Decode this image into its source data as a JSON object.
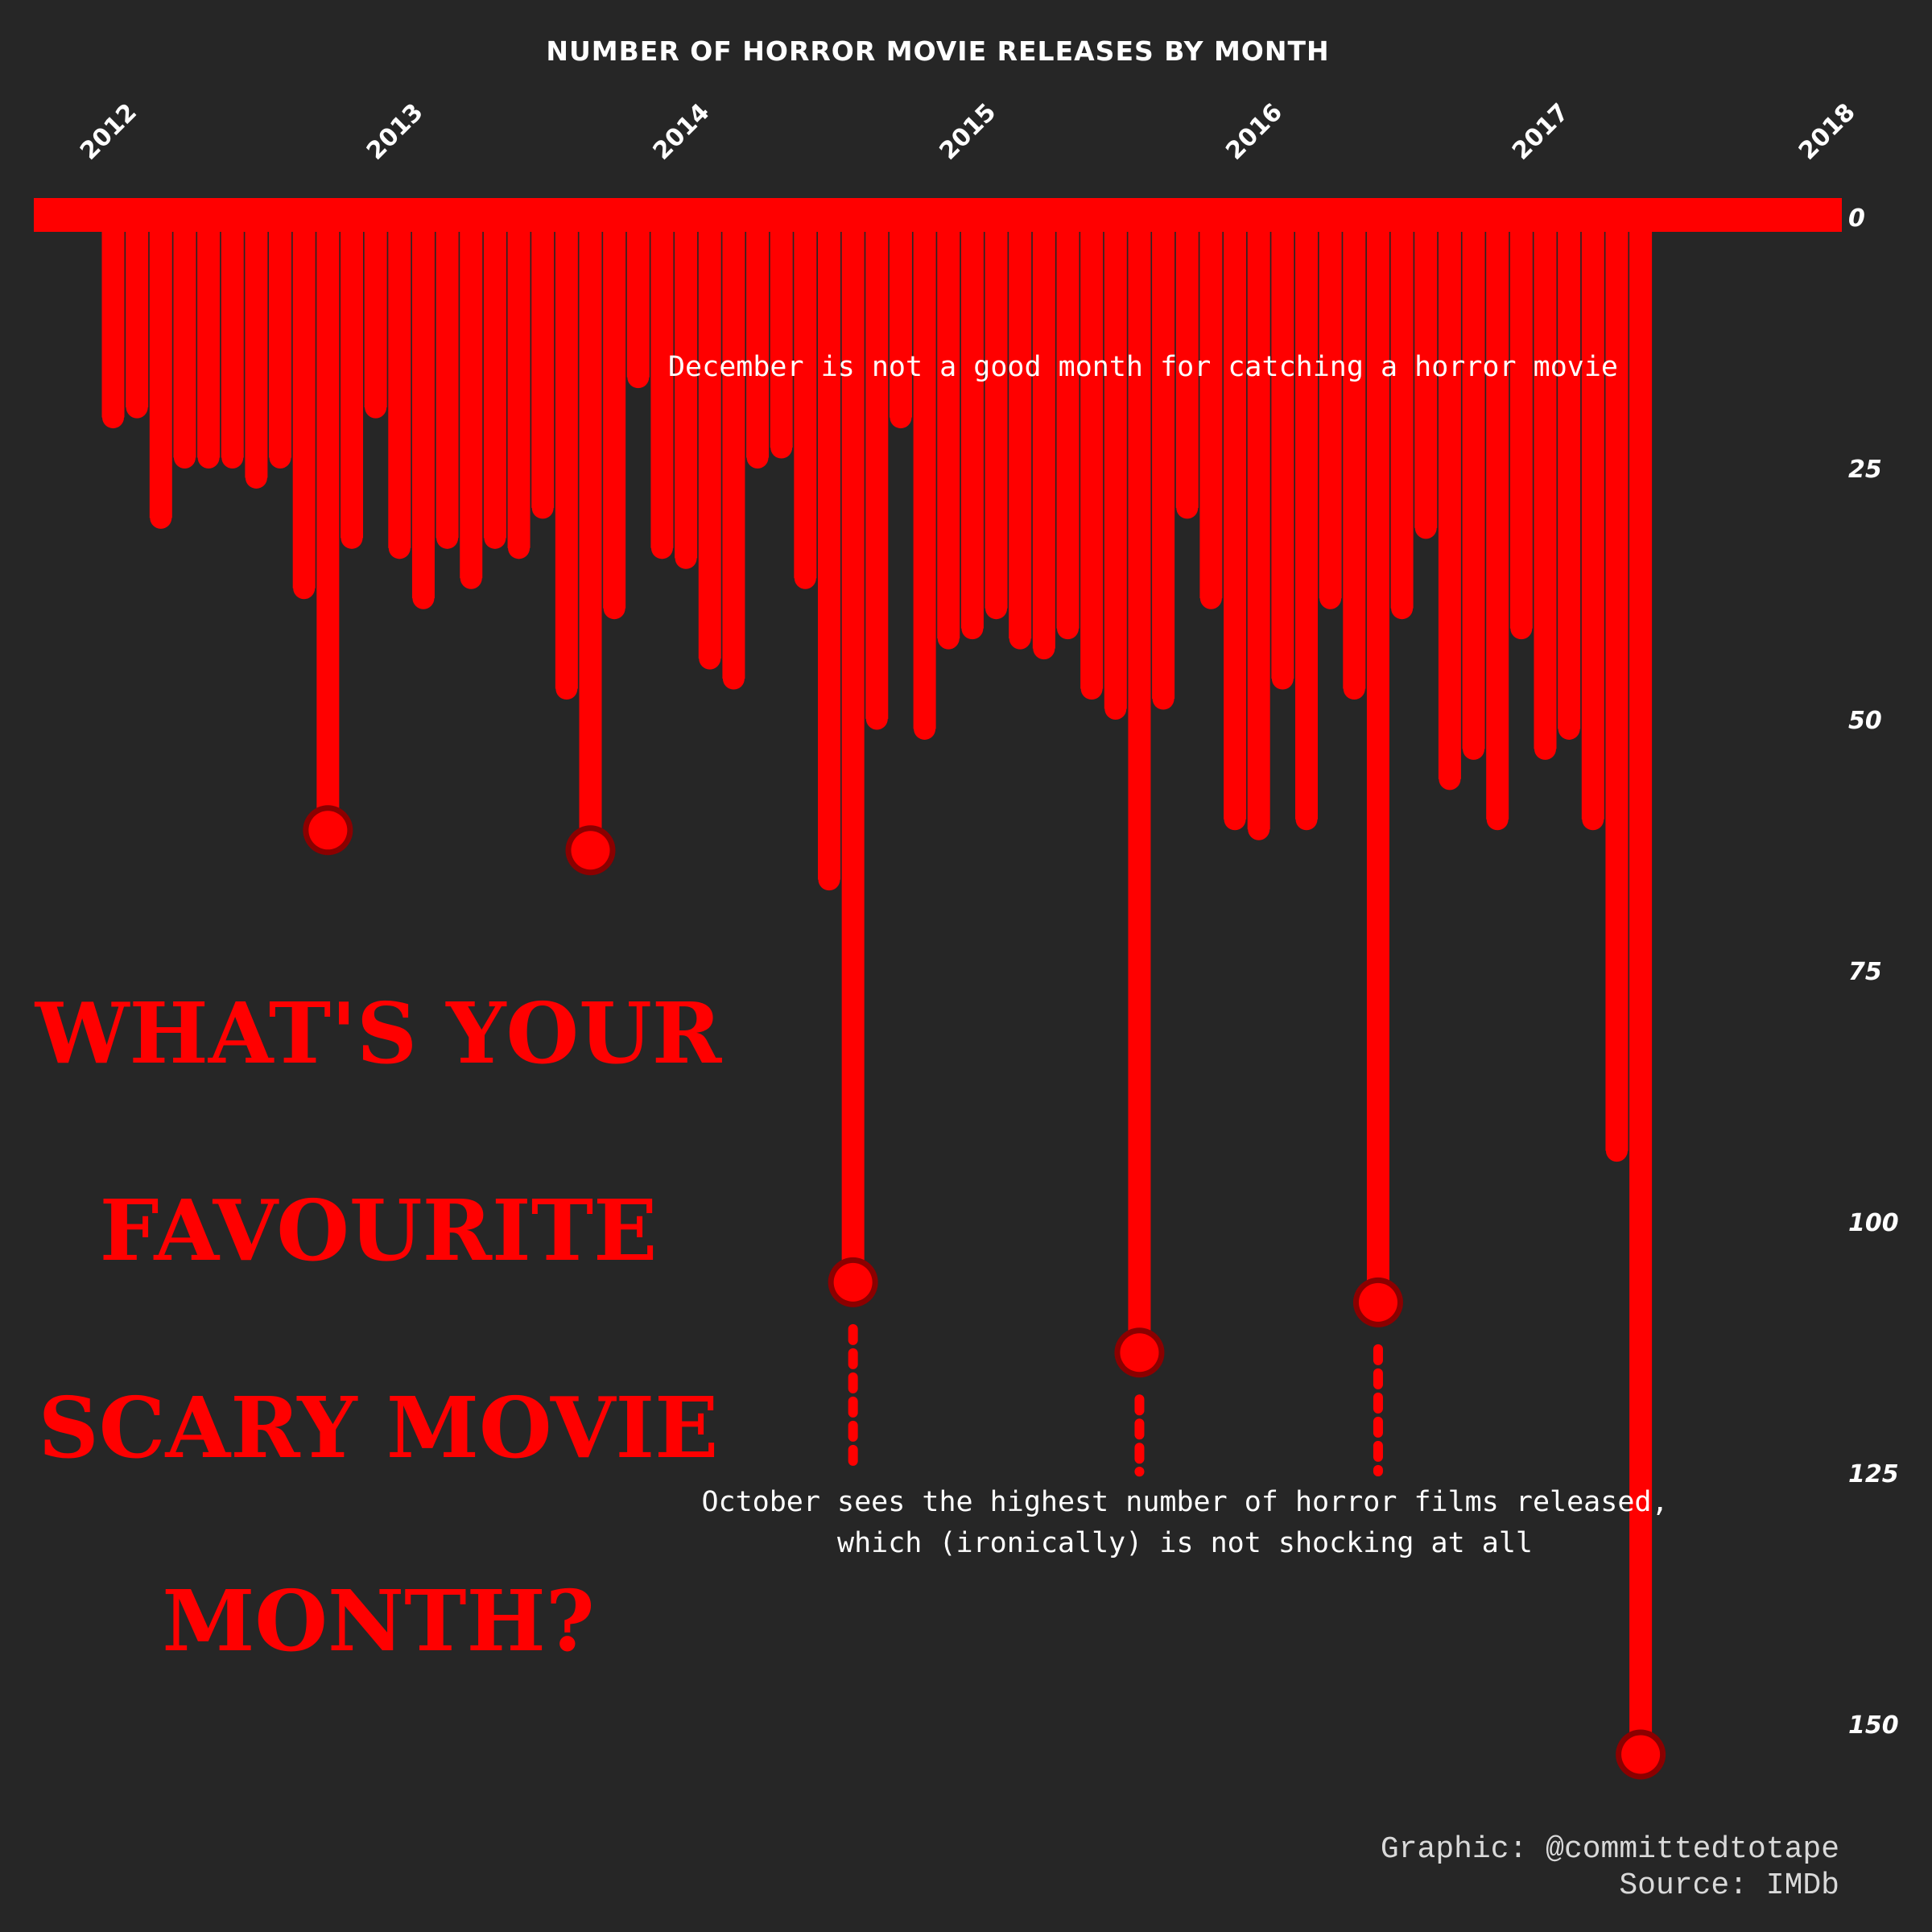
{
  "page": {
    "background": "#262626",
    "blood_color": "#ff0000",
    "dark_blood": "#8b0000",
    "text_color": "#ffffff"
  },
  "chart_data": {
    "type": "bar",
    "title": "NUMBER OF HORROR MOVIE RELEASES BY MONTH",
    "orientation": "downward",
    "x_axis_position": "top",
    "y_axis_position": "right",
    "x_tick_labels": [
      "2012",
      "2013",
      "2014",
      "2015",
      "2016",
      "2017",
      "2018"
    ],
    "y_tick_labels": [
      "0",
      "25",
      "50",
      "75",
      "100",
      "125",
      "150"
    ],
    "ylim": [
      0,
      150
    ],
    "grid": false,
    "legend": "none",
    "categories": [
      "2012-01",
      "2012-02",
      "2012-03",
      "2012-04",
      "2012-05",
      "2012-06",
      "2012-07",
      "2012-08",
      "2012-09",
      "2012-10",
      "2012-11",
      "2012-12",
      "2013-01",
      "2013-02",
      "2013-03",
      "2013-04",
      "2013-05",
      "2013-06",
      "2013-07",
      "2013-08",
      "2013-09",
      "2013-10",
      "2013-11",
      "2013-12",
      "2014-01",
      "2014-02",
      "2014-03",
      "2014-04",
      "2014-05",
      "2014-06",
      "2014-07",
      "2014-08",
      "2014-09",
      "2014-10",
      "2014-11",
      "2014-12",
      "2015-01",
      "2015-02",
      "2015-03",
      "2015-04",
      "2015-05",
      "2015-06",
      "2015-07",
      "2015-08",
      "2015-09",
      "2015-10",
      "2015-11",
      "2015-12",
      "2016-01",
      "2016-02",
      "2016-03",
      "2016-04",
      "2016-05",
      "2016-06",
      "2016-07",
      "2016-08",
      "2016-09",
      "2016-10",
      "2016-11",
      "2016-12",
      "2017-01",
      "2017-02",
      "2017-03",
      "2017-04",
      "2017-05",
      "2017-06",
      "2017-07",
      "2017-08",
      "2017-09",
      "2017-10",
      "2017-11",
      "2017-12"
    ],
    "values": [
      21,
      20,
      31,
      25,
      25,
      25,
      27,
      25,
      38,
      61,
      33,
      20,
      34,
      39,
      33,
      37,
      33,
      34,
      30,
      48,
      63,
      40,
      17,
      34,
      35,
      45,
      47,
      25,
      24,
      37,
      67,
      106,
      51,
      21,
      52,
      43,
      42,
      40,
      43,
      44,
      42,
      48,
      50,
      113,
      49,
      30,
      39,
      61,
      62,
      47,
      61,
      39,
      48,
      108,
      40,
      32,
      57,
      54,
      61,
      42,
      54,
      52,
      61,
      94,
      153,
      0,
      0,
      0,
      0,
      0,
      0,
      0
    ],
    "highlighted": [
      {
        "category": "2012-10",
        "value": 61
      },
      {
        "category": "2013-09",
        "value": 63
      },
      {
        "category": "2014-08",
        "value": 106
      },
      {
        "category": "2015-08",
        "value": 113
      },
      {
        "category": "2016-06",
        "value": 108
      },
      {
        "category": "2017-05",
        "value": 153
      }
    ],
    "annotations": [
      "December is not a good month for catching a horror movie",
      "October sees the highest number of horror films released,",
      "which (ironically) is not shocking at all"
    ]
  },
  "headline": [
    "WHAT'S YOUR",
    "FAVOURITE",
    "SCARY MOVIE",
    "MONTH?"
  ],
  "credits": {
    "graphic": "Graphic: @committedtotape",
    "source": "Source: IMDb"
  }
}
